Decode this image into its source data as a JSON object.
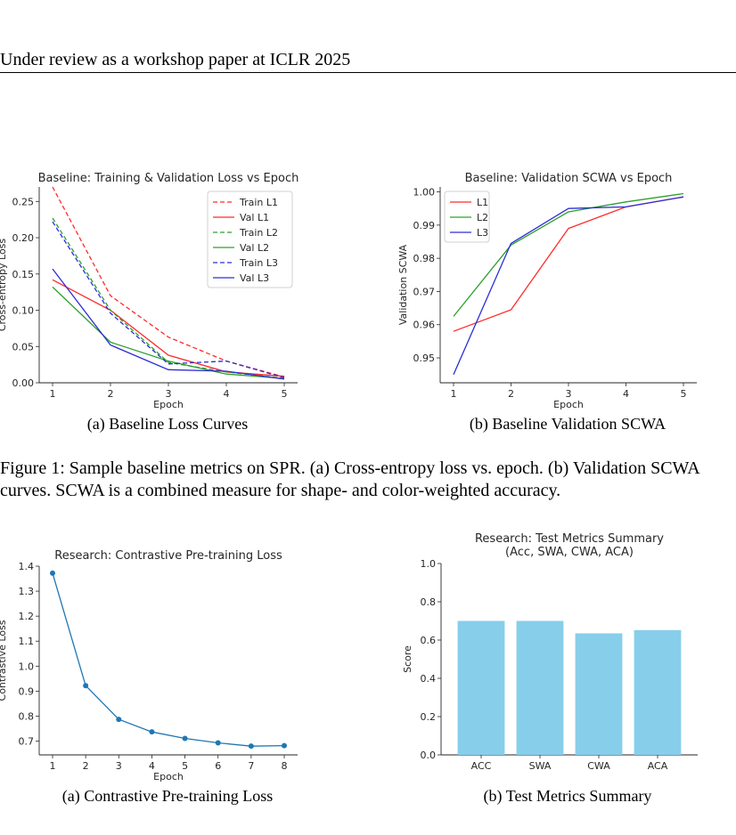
{
  "page": {
    "header": "Under review as a workshop paper at ICLR 2025",
    "figure1_caption": "Figure 1: Sample baseline metrics on SPR. (a) Cross-entropy loss vs. epoch. (b) Validation SCWA curves. SCWA is a combined measure for shape- and color-weighted accuracy."
  },
  "subcaptions": {
    "fig1a": "(a) Baseline Loss Curves",
    "fig1b": "(b) Baseline Validation SCWA",
    "fig2a": "(a) Contrastive Pre-training Loss",
    "fig2b": "(b) Test Metrics Summary"
  },
  "colors": {
    "red": "#ff2a2a",
    "green": "#2ca02c",
    "blue": "#2c2cd8",
    "line": "#1f77b4",
    "bar": "#87ceeb"
  },
  "chart_data": [
    {
      "id": "loss",
      "type": "line",
      "title": "Baseline: Training & Validation Loss vs Epoch",
      "xlabel": "Epoch",
      "ylabel": "Cross-entropy Loss",
      "x": [
        1,
        2,
        3,
        4,
        5
      ],
      "xlim": [
        1,
        5
      ],
      "ylim": [
        0,
        0.27
      ],
      "xticks": [
        1,
        2,
        3,
        4,
        5
      ],
      "yticks": [
        0.0,
        0.05,
        0.1,
        0.15,
        0.2,
        0.25
      ],
      "ytick_labels": [
        "0.00",
        "0.05",
        "0.10",
        "0.15",
        "0.20",
        "0.25"
      ],
      "legend_position": "upper right",
      "series": [
        {
          "name": "Train L1",
          "color": "red",
          "dashed": true,
          "values": [
            0.27,
            0.12,
            0.063,
            0.03,
            0.008
          ]
        },
        {
          "name": "Val L1",
          "color": "red",
          "dashed": false,
          "values": [
            0.142,
            0.1,
            0.038,
            0.015,
            0.009
          ]
        },
        {
          "name": "Train L2",
          "color": "green",
          "dashed": true,
          "values": [
            0.227,
            0.1,
            0.028,
            0.015,
            0.006
          ]
        },
        {
          "name": "Val L2",
          "color": "green",
          "dashed": false,
          "values": [
            0.132,
            0.056,
            0.03,
            0.012,
            0.006
          ]
        },
        {
          "name": "Train L3",
          "color": "blue",
          "dashed": true,
          "values": [
            0.222,
            0.096,
            0.026,
            0.03,
            0.007
          ]
        },
        {
          "name": "Val L3",
          "color": "blue",
          "dashed": false,
          "values": [
            0.157,
            0.052,
            0.018,
            0.016,
            0.005
          ]
        }
      ]
    },
    {
      "id": "scwa",
      "type": "line",
      "title": "Baseline: Validation SCWA vs Epoch",
      "xlabel": "Epoch",
      "ylabel": "Validation SCWA",
      "x": [
        1,
        2,
        3,
        4,
        5
      ],
      "xlim": [
        1,
        5
      ],
      "ylim": [
        0.9425,
        1.0015
      ],
      "xticks": [
        1,
        2,
        3,
        4,
        5
      ],
      "yticks": [
        0.95,
        0.96,
        0.97,
        0.98,
        0.99,
        1.0
      ],
      "ytick_labels": [
        "0.95",
        "0.96",
        "0.97",
        "0.98",
        "0.99",
        "1.00"
      ],
      "legend_position": "upper left",
      "series": [
        {
          "name": "L1",
          "color": "red",
          "dashed": false,
          "values": [
            0.958,
            0.9645,
            0.989,
            0.9955,
            0.9985
          ]
        },
        {
          "name": "L2",
          "color": "green",
          "dashed": false,
          "values": [
            0.9625,
            0.984,
            0.994,
            0.997,
            0.9995
          ]
        },
        {
          "name": "L3",
          "color": "blue",
          "dashed": false,
          "values": [
            0.945,
            0.9845,
            0.995,
            0.9955,
            0.9985
          ]
        }
      ]
    },
    {
      "id": "contrastive",
      "type": "line",
      "title": "Research: Contrastive Pre-training Loss",
      "xlabel": "Epoch",
      "ylabel": "Contrastive Loss",
      "x": [
        1,
        2,
        3,
        4,
        5,
        6,
        7,
        8
      ],
      "xlim": [
        1,
        8
      ],
      "ylim": [
        0.645,
        1.4
      ],
      "xticks": [
        1,
        2,
        3,
        4,
        5,
        6,
        7,
        8
      ],
      "yticks": [
        0.7,
        0.8,
        0.9,
        1.0,
        1.1,
        1.2,
        1.3,
        1.4
      ],
      "ytick_labels": [
        "0.7",
        "0.8",
        "0.9",
        "1.0",
        "1.1",
        "1.2",
        "1.3",
        "1.4"
      ],
      "series": [
        {
          "name": "",
          "color": "line",
          "dashed": false,
          "markers": true,
          "values": [
            1.372,
            0.922,
            0.787,
            0.737,
            0.711,
            0.693,
            0.68,
            0.682
          ]
        }
      ]
    },
    {
      "id": "metrics",
      "type": "bar",
      "title": "Research: Test Metrics Summary",
      "subtitle": "(Acc, SWA, CWA, ACA)",
      "ylabel": "Score",
      "xlabel": "",
      "categories": [
        "ACC",
        "SWA",
        "CWA",
        "ACA"
      ],
      "values": [
        0.7,
        0.7,
        0.635,
        0.652
      ],
      "ylim": [
        0,
        1.0
      ],
      "yticks": [
        0.0,
        0.2,
        0.4,
        0.6,
        0.8,
        1.0
      ],
      "ytick_labels": [
        "0.0",
        "0.2",
        "0.4",
        "0.6",
        "0.8",
        "1.0"
      ],
      "color": "bar"
    }
  ]
}
